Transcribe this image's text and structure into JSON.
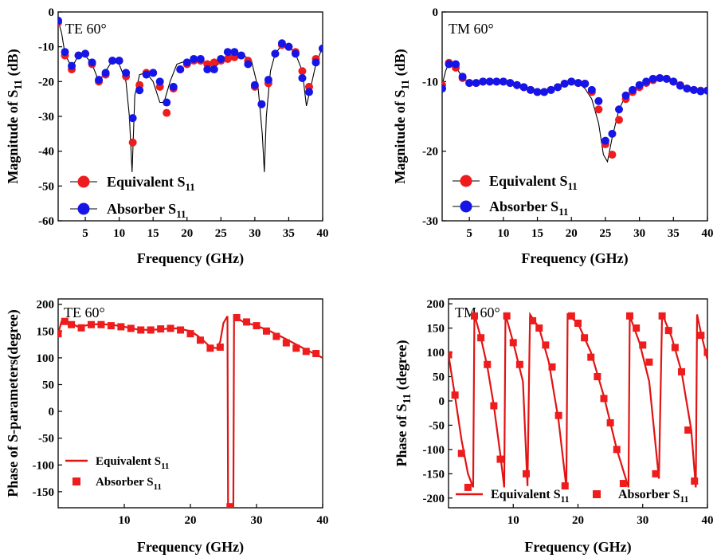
{
  "colors": {
    "equivalent": "#ee1c1c",
    "absorber": "#1515e8",
    "line": "#e11313",
    "axis": "#000000"
  },
  "chart_data": [
    {
      "type": "line",
      "panel_label": "TE 60°",
      "xlabel": "Frequency (GHz)",
      "ylabel": {
        "pre": "Magnitude of S",
        "sub": "11",
        "post": " (dB)"
      },
      "xlim": [
        1,
        40
      ],
      "ylim": [
        -60,
        0
      ],
      "xticks": [
        5,
        10,
        15,
        20,
        25,
        30,
        35,
        40
      ],
      "yticks": [
        0,
        -10,
        -20,
        -30,
        -40,
        -50,
        -60
      ],
      "markers": "circle",
      "legend_position": "bottom-left",
      "legend": [
        {
          "text": "Equivalent S",
          "sub": "11",
          "color_key": "equivalent"
        },
        {
          "text": "Absorber S",
          "sub": "11",
          "color_key": "absorber"
        }
      ],
      "curve": {
        "x": [
          1,
          1.5,
          2,
          3,
          4,
          5,
          6,
          7,
          8,
          9,
          10,
          11,
          11.5,
          11.9,
          12.3,
          13,
          14,
          15,
          16,
          16.6,
          17.5,
          18.5,
          20,
          22,
          24,
          26,
          28,
          29.5,
          30.5,
          31.1,
          31.4,
          31.7,
          32.3,
          33,
          34,
          35,
          36,
          37,
          37.6,
          38.2,
          39,
          40
        ],
        "y": [
          -2.5,
          -6,
          -12,
          -16,
          -12.5,
          -12.5,
          -15,
          -20,
          -17,
          -14,
          -15,
          -20,
          -30,
          -46,
          -24,
          -18,
          -17.5,
          -20,
          -26,
          -26,
          -20,
          -15,
          -14,
          -14,
          -16,
          -12.5,
          -12,
          -14,
          -22,
          -35,
          -46,
          -30,
          -17,
          -12,
          -9.5,
          -10,
          -12,
          -17,
          -27,
          -22,
          -15,
          -10
        ]
      },
      "series": [
        {
          "name": "Equivalent S11",
          "color_key": "equivalent",
          "x": [
            1,
            2,
            3,
            4,
            5,
            6,
            7,
            8,
            9,
            10,
            11,
            12,
            13,
            14,
            15,
            16,
            17,
            18,
            19,
            20,
            21,
            22,
            23,
            24,
            25,
            26,
            27,
            28,
            29,
            30,
            31,
            32,
            33,
            34,
            35,
            36,
            37,
            38,
            39,
            40
          ],
          "y": [
            -3,
            -12.5,
            -16.5,
            -12.5,
            -12,
            -15,
            -20,
            -18,
            -14,
            -14,
            -18.5,
            -37.5,
            -21,
            -17.5,
            -17.5,
            -21.5,
            -29,
            -22,
            -16.5,
            -15,
            -14,
            -14,
            -15,
            -14.5,
            -14,
            -13.5,
            -13,
            -12.5,
            -14,
            -21.5,
            -26.5,
            -20.5,
            -12,
            -9.5,
            -10,
            -11.5,
            -17,
            -21.5,
            -13.5,
            -10.5
          ]
        },
        {
          "name": "Absorber S11",
          "color_key": "absorber",
          "x": [
            1,
            2,
            3,
            4,
            5,
            6,
            7,
            8,
            9,
            10,
            11,
            12,
            13,
            14,
            15,
            16,
            17,
            18,
            19,
            20,
            21,
            22,
            23,
            24,
            25,
            26,
            27,
            28,
            29,
            30,
            31,
            32,
            33,
            34,
            35,
            36,
            37,
            38,
            39,
            40
          ],
          "y": [
            -2.5,
            -11.5,
            -15.5,
            -12.5,
            -12,
            -14.5,
            -19.5,
            -17.5,
            -14,
            -14,
            -17.5,
            -30.5,
            -22.5,
            -18,
            -17.5,
            -20,
            -26,
            -21.5,
            -16.5,
            -14.5,
            -13.5,
            -13.5,
            -16.5,
            -16.5,
            -13.5,
            -11.5,
            -11.5,
            -12.5,
            -15,
            -21,
            -26.5,
            -19.5,
            -12,
            -9,
            -10,
            -12,
            -19,
            -23,
            -14.5,
            -10.5
          ]
        }
      ]
    },
    {
      "type": "line",
      "panel_label": "TM 60°",
      "xlabel": "Frequency (GHz)",
      "ylabel": {
        "pre": "Magnitude of S",
        "sub": "11",
        "post": " (dB)"
      },
      "xlim": [
        1,
        40
      ],
      "ylim": [
        -30,
        0
      ],
      "xticks": [
        5,
        10,
        15,
        20,
        25,
        30,
        35,
        40
      ],
      "yticks": [
        0,
        -10,
        -20,
        -30
      ],
      "markers": "circle",
      "legend_position": "bottom-left",
      "legend": [
        {
          "text": "Equivalent S",
          "sub": "11",
          "color_key": "equivalent"
        },
        {
          "text": "Absorber S",
          "sub": "11",
          "color_key": "absorber"
        }
      ],
      "curve": {
        "x": [
          1,
          1.5,
          2,
          3,
          4,
          5,
          7,
          10,
          13,
          15,
          17,
          19,
          21,
          22,
          23,
          24,
          24.7,
          25.3,
          26,
          27,
          28,
          30,
          33,
          35,
          38,
          40
        ],
        "y": [
          -10.5,
          -8.5,
          -7.3,
          -7.8,
          -9.5,
          -10.2,
          -10,
          -10,
          -10.8,
          -11.5,
          -11,
          -10.2,
          -10.2,
          -11,
          -12.5,
          -16,
          -20.5,
          -21.5,
          -18,
          -14,
          -12,
          -10.5,
          -9.5,
          -10.2,
          -11.2,
          -11.3
        ]
      },
      "series": [
        {
          "name": "Equivalent S11",
          "color_key": "equivalent",
          "x": [
            1,
            2,
            3,
            4,
            5,
            6,
            7,
            8,
            9,
            10,
            11,
            12,
            13,
            14,
            15,
            16,
            17,
            18,
            19,
            20,
            21,
            22,
            23,
            24,
            25,
            26,
            27,
            28,
            29,
            30,
            31,
            32,
            33,
            34,
            35,
            36,
            37,
            38,
            39,
            40
          ],
          "y": [
            -10.5,
            -7.3,
            -8,
            -9.5,
            -10.2,
            -10.2,
            -10,
            -10,
            -10,
            -10,
            -10.2,
            -10.5,
            -10.8,
            -11.2,
            -11.5,
            -11.5,
            -11.2,
            -10.8,
            -10.3,
            -10,
            -10.2,
            -10.3,
            -11.5,
            -14,
            -19,
            -20.5,
            -15.5,
            -12.5,
            -11.5,
            -10.8,
            -10.2,
            -9.8,
            -9.5,
            -9.6,
            -10,
            -10.5,
            -11,
            -11.2,
            -11.3,
            -11.3
          ]
        },
        {
          "name": "Absorber S11",
          "color_key": "absorber",
          "x": [
            1,
            2,
            3,
            4,
            5,
            6,
            7,
            8,
            9,
            10,
            11,
            12,
            13,
            14,
            15,
            16,
            17,
            18,
            19,
            20,
            21,
            22,
            23,
            24,
            25,
            26,
            27,
            28,
            29,
            30,
            31,
            32,
            33,
            34,
            35,
            36,
            37,
            38,
            39,
            40
          ],
          "y": [
            -11,
            -7.5,
            -7.5,
            -9.3,
            -10.2,
            -10.2,
            -10,
            -10,
            -10,
            -10,
            -10.2,
            -10.5,
            -10.8,
            -11.2,
            -11.5,
            -11.5,
            -11.2,
            -10.8,
            -10.3,
            -10,
            -10.2,
            -10.3,
            -11.2,
            -12.8,
            -18.5,
            -17.5,
            -14,
            -12,
            -11.2,
            -10.5,
            -10,
            -9.6,
            -9.5,
            -9.6,
            -10,
            -10.6,
            -11,
            -11.2,
            -11.4,
            -11.3
          ]
        }
      ]
    },
    {
      "type": "line",
      "panel_label": "TE 60°",
      "xlabel": "Frequency (GHz)",
      "ylabel": {
        "pre": "Phase of S-parameters(degree)",
        "sub": "",
        "post": ""
      },
      "xlim": [
        0,
        40
      ],
      "ylim": [
        -180,
        210
      ],
      "xticks": [
        10,
        20,
        30,
        40
      ],
      "yticks": [
        200,
        150,
        100,
        50,
        0,
        -50,
        -100,
        -150
      ],
      "markers": "square",
      "legend_position": "bottom-left",
      "legend": [
        {
          "text": "Equivalent S",
          "sub": "11",
          "color_key": "line",
          "kind": "line"
        },
        {
          "text": "Absorber S",
          "sub": "11",
          "color_key": "equivalent",
          "kind": "square"
        }
      ],
      "curve_segments": [
        {
          "x": [
            0,
            0.5,
            1,
            2,
            3,
            4,
            5,
            6,
            8,
            10,
            12,
            14,
            16,
            18,
            20,
            21,
            22,
            23,
            24,
            24.5,
            25,
            25.6
          ],
          "y": [
            145,
            168,
            170,
            164,
            158,
            160,
            162,
            163,
            162,
            158,
            153,
            152,
            154,
            155,
            150,
            142,
            132,
            120,
            118,
            130,
            165,
            178
          ]
        },
        {
          "x": [
            25.6,
            25.7,
            26.5,
            26.6,
            27,
            28,
            30,
            32,
            34,
            36,
            38,
            40
          ],
          "y": [
            178,
            -180,
            -180,
            178,
            175,
            167,
            160,
            150,
            138,
            125,
            112,
            100
          ]
        }
      ],
      "series": [
        {
          "name": "Absorber S11",
          "color_key": "equivalent",
          "x": [
            0,
            1,
            2,
            3.5,
            5,
            6.5,
            8,
            9.5,
            11,
            12.5,
            14,
            15.5,
            17,
            18.5,
            20,
            21.5,
            23,
            24.5,
            26,
            27,
            28.5,
            30,
            31.5,
            33,
            34.5,
            36,
            37.5,
            39
          ],
          "y": [
            145,
            168,
            162,
            156,
            162,
            162,
            160,
            158,
            155,
            152,
            152,
            154,
            155,
            152,
            145,
            133,
            118,
            120,
            -178,
            175,
            167,
            160,
            150,
            140,
            128,
            118,
            112,
            108
          ]
        }
      ]
    },
    {
      "type": "line",
      "panel_label": "TM 60°",
      "xlabel": "Frequency (GHz)",
      "ylabel": {
        "pre": "Phase of S",
        "sub": "11",
        "post": " (degree)"
      },
      "xlim": [
        0,
        40
      ],
      "ylim": [
        -220,
        210
      ],
      "xticks": [
        10,
        20,
        30,
        40
      ],
      "yticks": [
        200,
        150,
        100,
        50,
        0,
        -50,
        -100,
        -150,
        -200
      ],
      "markers": "square",
      "legend_position": "bottom",
      "legend": [
        {
          "text": "Equivalent S",
          "sub": "11",
          "color_key": "line",
          "kind": "line"
        },
        {
          "text": "Absorber S",
          "sub": "11",
          "color_key": "equivalent",
          "kind": "square"
        }
      ],
      "curve_segments": [
        {
          "x": [
            0,
            1,
            2,
            3,
            3.8
          ],
          "y": [
            95,
            10,
            -80,
            -150,
            -178
          ]
        },
        {
          "x": [
            3.8,
            4.0,
            5,
            6,
            7,
            8,
            8.6
          ],
          "y": [
            -178,
            178,
            130,
            70,
            -10,
            -110,
            -178
          ]
        },
        {
          "x": [
            8.6,
            8.8,
            10,
            11.5,
            12.2
          ],
          "y": [
            -178,
            178,
            120,
            40,
            -175
          ]
        },
        {
          "x": [
            12.2,
            12.5
          ],
          "y": [
            -175,
            105
          ]
        },
        {
          "x": [
            12.5,
            12.6,
            14,
            15.5,
            17,
            18.2
          ],
          "y": [
            105,
            178,
            150,
            80,
            -40,
            -178
          ]
        },
        {
          "x": [
            18.2,
            18.4,
            20,
            22,
            24,
            26,
            27.8
          ],
          "y": [
            -178,
            178,
            160,
            100,
            10,
            -100,
            -178
          ]
        },
        {
          "x": [
            27.8,
            28.0,
            29.5,
            31,
            32.5
          ],
          "y": [
            -178,
            175,
            120,
            40,
            -160
          ]
        },
        {
          "x": [
            32.5,
            33.0
          ],
          "y": [
            -160,
            180
          ]
        },
        {
          "x": [
            33.0,
            34.5,
            36,
            37.5,
            38.2
          ],
          "y": [
            180,
            130,
            60,
            -60,
            -178
          ]
        },
        {
          "x": [
            38.2,
            38.4,
            39,
            40
          ],
          "y": [
            -178,
            178,
            140,
            85
          ]
        }
      ],
      "series": [
        {
          "name": "Absorber S11",
          "color_key": "equivalent",
          "x": [
            0,
            1,
            2,
            3,
            4,
            5,
            6,
            7,
            8,
            9,
            10,
            11,
            12,
            13,
            14,
            15,
            16,
            17,
            18,
            19,
            20,
            21,
            22,
            23,
            24,
            25,
            26,
            27,
            28,
            29,
            30,
            31,
            32,
            33,
            34,
            35,
            36,
            37,
            38,
            39,
            40
          ],
          "y": [
            95,
            12,
            -108,
            -178,
            175,
            130,
            75,
            -10,
            -120,
            175,
            120,
            75,
            -150,
            165,
            150,
            115,
            70,
            -30,
            -175,
            175,
            160,
            130,
            90,
            50,
            5,
            -45,
            -100,
            -170,
            175,
            150,
            115,
            80,
            -150,
            175,
            145,
            110,
            60,
            -60,
            -165,
            135,
            100
          ]
        }
      ]
    }
  ]
}
